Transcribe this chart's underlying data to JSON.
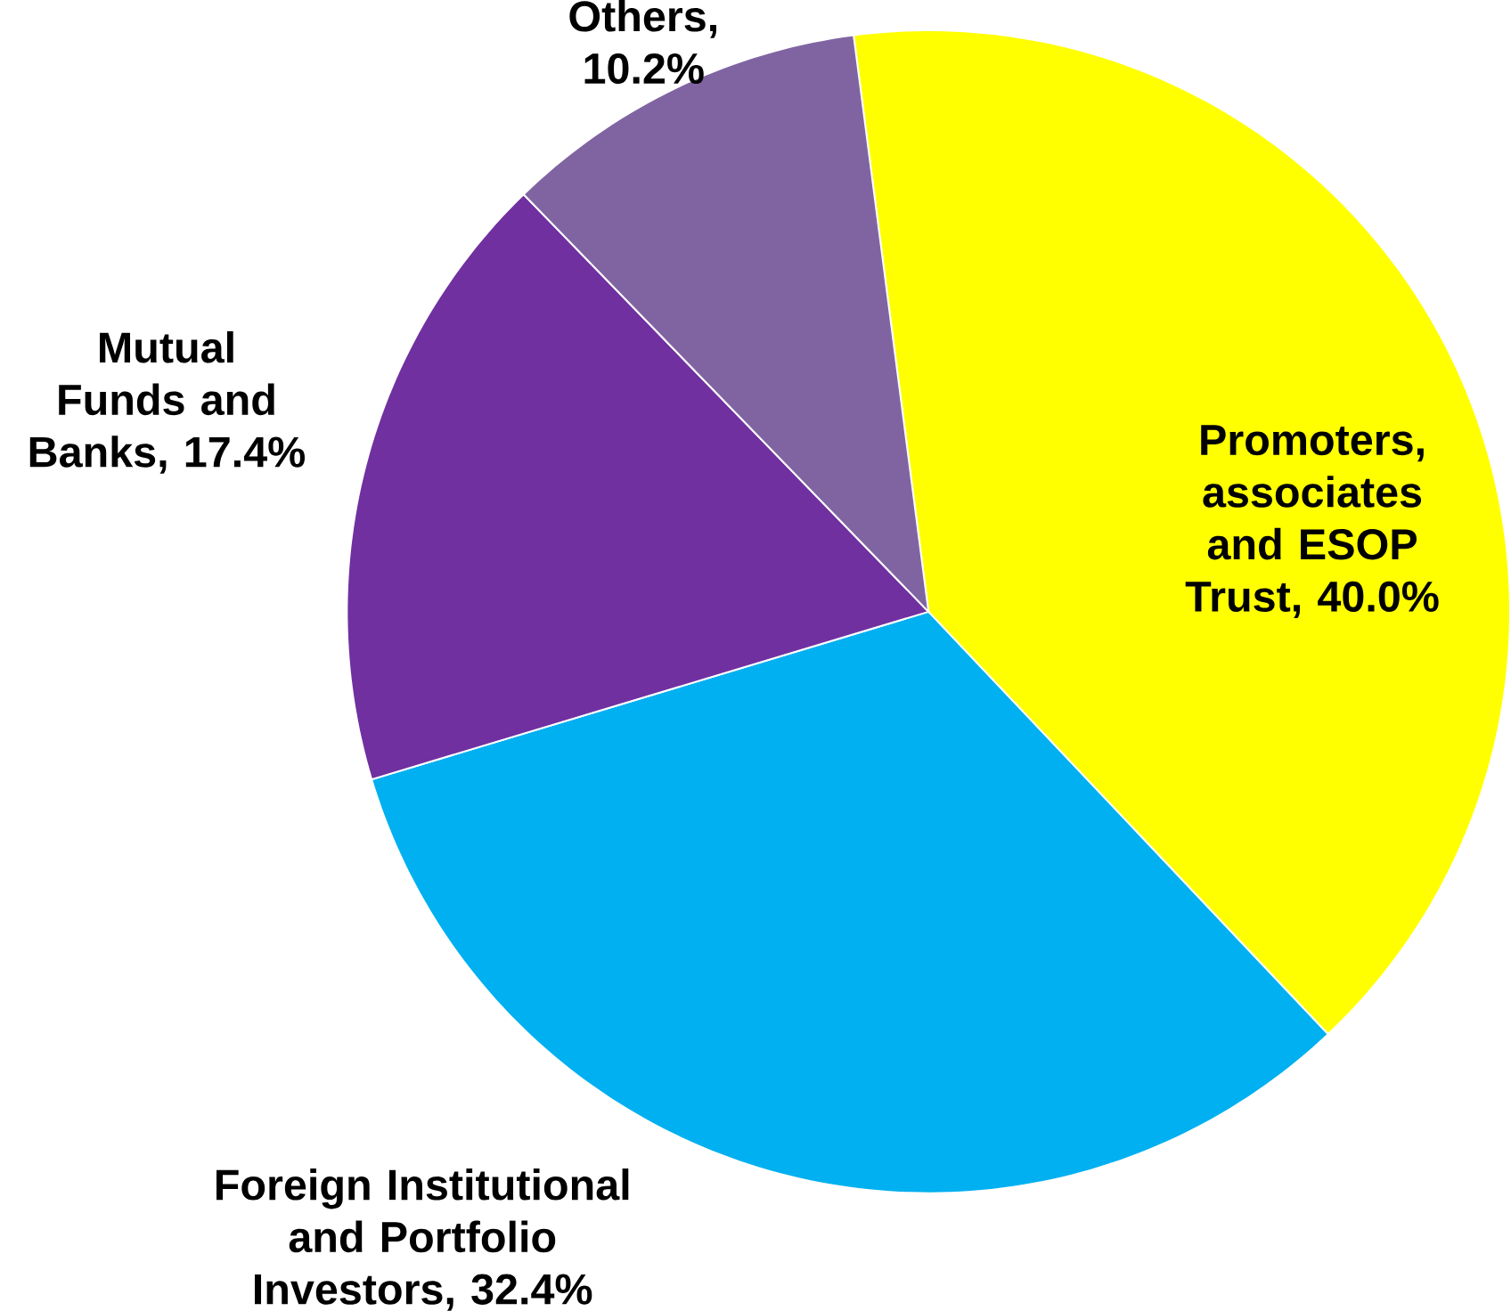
{
  "chart_data": {
    "type": "pie",
    "categories": [
      "Promoters, associates and ESOP Trust, 40.0%",
      "Foreign Institutional and Portfolio Investors, 32.4%",
      "Mutual Funds and Banks, 17.4%",
      "Others, 10.2%"
    ],
    "values": [
      40.0,
      32.4,
      17.4,
      10.2
    ],
    "colors": [
      "#ffff00",
      "#00b0f0",
      "#7030a0",
      "#8064a2"
    ]
  }
}
